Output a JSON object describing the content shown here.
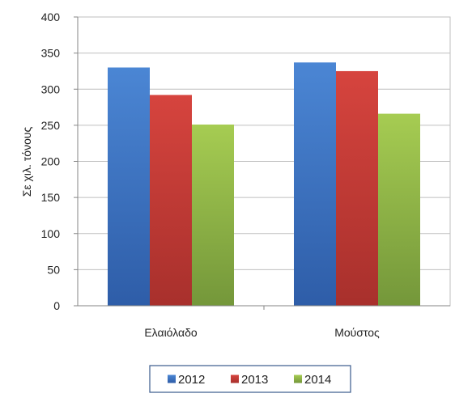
{
  "chart_data": {
    "type": "bar",
    "title": "",
    "xlabel": "",
    "ylabel": "Σε χιλ. τόνους",
    "categories": [
      "Ελαιόλαδο",
      "Μούστος"
    ],
    "series": [
      {
        "name": "2012",
        "values": [
          330,
          337
        ]
      },
      {
        "name": "2013",
        "values": [
          292,
          325
        ]
      },
      {
        "name": "2014",
        "values": [
          251,
          266
        ]
      }
    ],
    "ylim": [
      0,
      400
    ],
    "yticks": [
      0,
      50,
      100,
      150,
      200,
      250,
      300,
      350,
      400
    ],
    "grid": true,
    "legend_position": "bottom",
    "colors": {
      "series": [
        {
          "top": "#4b86d4",
          "bottom": "#2e5da8"
        },
        {
          "top": "#d6443e",
          "bottom": "#a8302c"
        },
        {
          "top": "#a6cc52",
          "bottom": "#74973a"
        }
      ],
      "grid": "#bfbfbf",
      "axis": "#868686",
      "plot_border": "#bfbfbf",
      "legend_border": "#3a5a8c"
    }
  }
}
